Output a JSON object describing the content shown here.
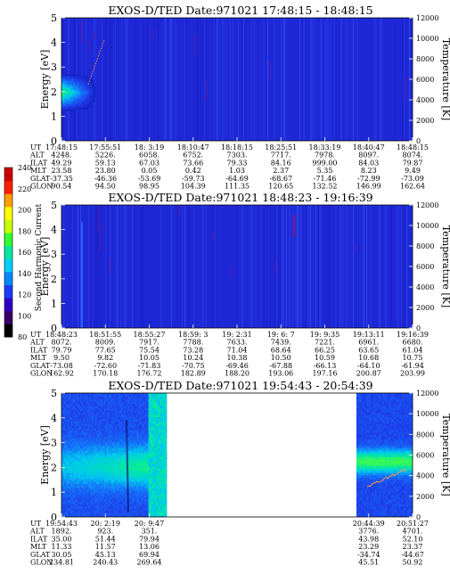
{
  "chart_data": {
    "type": "heatmap",
    "colorbar": {
      "label": "Second Harmonic Current",
      "ticks": [
        "80",
        "100",
        "120",
        "140",
        "160",
        "180",
        "200",
        "220",
        "240"
      ],
      "range": [
        80,
        240
      ],
      "colors": [
        "#000000",
        "#3a0066",
        "#2d00c8",
        "#1a3cff",
        "#0088ff",
        "#00d0ff",
        "#00e8a0",
        "#30ff30",
        "#c8ff00",
        "#ffff00",
        "#ffa000",
        "#ff2000",
        "#d00000"
      ]
    },
    "panels": [
      {
        "title": "EXOS-D/TED   Date:971021   17:48:15 - 18:48:15",
        "ylabel": "Energy [eV]",
        "y2label": "Temperature [K]",
        "ylim": [
          0,
          5
        ],
        "y2lim": [
          0,
          12000
        ],
        "yticks": [
          "0",
          "1",
          "2",
          "3",
          "4",
          "5"
        ],
        "y2ticks": [
          "0",
          "2000",
          "4000",
          "6000",
          "8000",
          "10000",
          "12000"
        ],
        "data_extent": [
          0,
          1
        ],
        "gaps": [],
        "ephemeris": {
          "labels": [
            "UT",
            "ALT",
            "ILAT",
            "MLT",
            "GLAT",
            "GLON"
          ],
          "columns": [
            {
              "UT": "17:48:15",
              "ALT": "4248.",
              "ILAT": "49.29",
              "MLT": "23.58",
              "GLAT": "-37.35",
              "GLON": "90.54"
            },
            {
              "UT": "17:55:51",
              "ALT": "5226.",
              "ILAT": "59.13",
              "MLT": "23.80",
              "GLAT": "-46.36",
              "GLON": "94.50"
            },
            {
              "UT": "18: 3:19",
              "ALT": "6058.",
              "ILAT": "67.03",
              "MLT": "0.05",
              "GLAT": "-53.69",
              "GLON": "98.95"
            },
            {
              "UT": "18:10:47",
              "ALT": "6752.",
              "ILAT": "73.66",
              "MLT": "0.42",
              "GLAT": "-59.73",
              "GLON": "104.39"
            },
            {
              "UT": "18:18:15",
              "ALT": "7303.",
              "ILAT": "79.33",
              "MLT": "1.03",
              "GLAT": "-64.69",
              "GLON": "111.35"
            },
            {
              "UT": "18:25:51",
              "ALT": "7717.",
              "ILAT": "84.16",
              "MLT": "2.37",
              "GLAT": "-68.67",
              "GLON": "120.65"
            },
            {
              "UT": "18:33:19",
              "ALT": "7978.",
              "ILAT": "999.00",
              "MLT": "5.35",
              "GLAT": "-71.46",
              "GLON": "132.52"
            },
            {
              "UT": "18:40:47",
              "ALT": "8097.",
              "ILAT": "84.03",
              "MLT": "8.23",
              "GLAT": "-72.99",
              "GLON": "146.99"
            },
            {
              "UT": "18:48:15",
              "ALT": "8074.",
              "ILAT": "79.87",
              "MLT": "9.49",
              "GLAT": "-73.09",
              "GLON": "162.64"
            }
          ]
        }
      },
      {
        "title": "EXOS-D/TED   Date:971021   18:48:23 - 19:16:39",
        "ylabel": "Energy [eV]",
        "y2label": "Temperature [K]",
        "ylim": [
          0,
          5
        ],
        "y2lim": [
          0,
          12000
        ],
        "yticks": [
          "0",
          "1",
          "2",
          "3",
          "4",
          "5"
        ],
        "y2ticks": [
          "0",
          "2000",
          "4000",
          "6000",
          "8000",
          "10000",
          "12000"
        ],
        "data_extent": [
          0,
          1
        ],
        "gaps": [],
        "ephemeris": {
          "labels": [
            "UT",
            "ALT",
            "ILAT",
            "MLT",
            "GLAT",
            "GLON"
          ],
          "columns": [
            {
              "UT": "18:48:23",
              "ALT": "8072.",
              "ILAT": "79.79",
              "MLT": "9.50",
              "GLAT": "-73.08",
              "GLON": "162.92"
            },
            {
              "UT": "18:51:55",
              "ALT": "8009.",
              "ILAT": "77.65",
              "MLT": "9.82",
              "GLAT": "-72.60",
              "GLON": "170.18"
            },
            {
              "UT": "18:55:27",
              "ALT": "7917.",
              "ILAT": "75.54",
              "MLT": "10.05",
              "GLAT": "-71.83",
              "GLON": "176.72"
            },
            {
              "UT": "18:59: 3",
              "ALT": "7788.",
              "ILAT": "73.28",
              "MLT": "10.24",
              "GLAT": "-70.75",
              "GLON": "182.89"
            },
            {
              "UT": "19: 2:31",
              "ALT": "7633.",
              "ILAT": "71.04",
              "MLT": "10.38",
              "GLAT": "-69.46",
              "GLON": "188.20"
            },
            {
              "UT": "19: 6: 7",
              "ALT": "7439.",
              "ILAT": "68.64",
              "MLT": "10.50",
              "GLAT": "-67.88",
              "GLON": "193.06"
            },
            {
              "UT": "19: 9:35",
              "ALT": "7221.",
              "ILAT": "66.25",
              "MLT": "10.59",
              "GLAT": "-66.13",
              "GLON": "197.16"
            },
            {
              "UT": "19:13:11",
              "ALT": "6961.",
              "ILAT": "63.65",
              "MLT": "10.68",
              "GLAT": "-64.10",
              "GLON": "200.87"
            },
            {
              "UT": "19:16:39",
              "ALT": "6680.",
              "ILAT": "61.04",
              "MLT": "10.75",
              "GLAT": "-61.94",
              "GLON": "203.99"
            }
          ]
        }
      },
      {
        "title": "EXOS-D/TED   Date:971021   19:54:43 - 20:54:39",
        "ylabel": "Energy [eV]",
        "y2label": "Temperature [K]",
        "ylim": [
          0,
          5
        ],
        "y2lim": [
          0,
          12000
        ],
        "yticks": [
          "0",
          "1",
          "2",
          "3",
          "4",
          "5"
        ],
        "y2ticks": [
          "0",
          "2000",
          "4000",
          "6000",
          "8000",
          "10000",
          "12000"
        ],
        "data_extent": [
          0,
          1
        ],
        "gaps": [
          [
            0.3,
            0.84
          ]
        ],
        "ephemeris": {
          "labels": [
            "UT",
            "ALT",
            "ILAT",
            "MLT",
            "GLAT",
            "GLON"
          ],
          "columns": [
            {
              "UT": "19:54:43",
              "ALT": "1892.",
              "ILAT": "35.00",
              "MLT": "11.33",
              "GLAT": "30.05",
              "GLON": "234.81"
            },
            {
              "UT": "20: 2:19",
              "ALT": "923.",
              "ILAT": "51.44",
              "MLT": "11.57",
              "GLAT": "45.13",
              "GLON": "240.43"
            },
            {
              "UT": "20: 9:47",
              "ALT": "351.",
              "ILAT": "79.94",
              "MLT": "13.06",
              "GLAT": "69.94",
              "GLON": "269.64"
            },
            null,
            null,
            null,
            null,
            {
              "UT": "20:44:39",
              "ALT": "3776.",
              "ILAT": "43.98",
              "MLT": "23.29",
              "GLAT": "-34.74",
              "GLON": "45.51"
            },
            {
              "UT": "20:51:27",
              "ALT": "4701.",
              "ILAT": "52.10",
              "MLT": "23.37",
              "GLAT": "-44.67",
              "GLON": "50.92"
            }
          ]
        }
      }
    ]
  }
}
